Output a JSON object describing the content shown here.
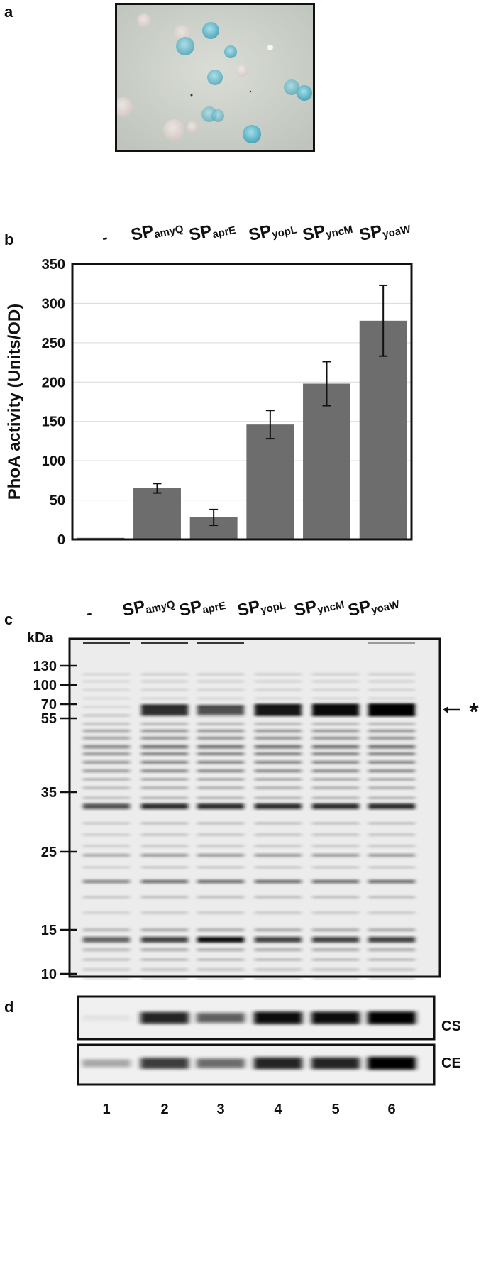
{
  "panels": {
    "a": "a",
    "b": "b",
    "c": "c",
    "d": "d"
  },
  "sample_labels": [
    {
      "base": "-",
      "sub": ""
    },
    {
      "base": "SP",
      "sub": "amyQ"
    },
    {
      "base": "SP",
      "sub": "aprE"
    },
    {
      "base": "SP",
      "sub": "yopL"
    },
    {
      "base": "SP",
      "sub": "yncM"
    },
    {
      "base": "SP",
      "sub": "yoaW"
    }
  ],
  "colors": {
    "bar": "#6d6d6d",
    "frame": "#111111",
    "plate_bg": "#cfd3cd",
    "colony_blue": "#4fb3c9"
  },
  "chart_data": {
    "type": "bar",
    "categories": [
      "-",
      "SPamyQ",
      "SPaprE",
      "SPyopL",
      "SPyncM",
      "SPyoaW"
    ],
    "values": [
      2,
      65,
      28,
      146,
      198,
      278
    ],
    "error": [
      0,
      6,
      10,
      18,
      28,
      45
    ],
    "ylabel": "PhoA activity (Units/OD)",
    "xlabel": "",
    "ylim": [
      0,
      350
    ],
    "yticks": [
      0,
      50,
      100,
      150,
      200,
      250,
      300,
      350
    ],
    "grid": true
  },
  "gel": {
    "unit_label": "kDa",
    "markers": [
      "130",
      "100",
      "70",
      "55",
      "35",
      "25",
      "15",
      "10"
    ],
    "target_marker": "*"
  },
  "western": {
    "rows": [
      "CS",
      "CE"
    ],
    "lanes": [
      "1",
      "2",
      "3",
      "4",
      "5",
      "6"
    ]
  }
}
